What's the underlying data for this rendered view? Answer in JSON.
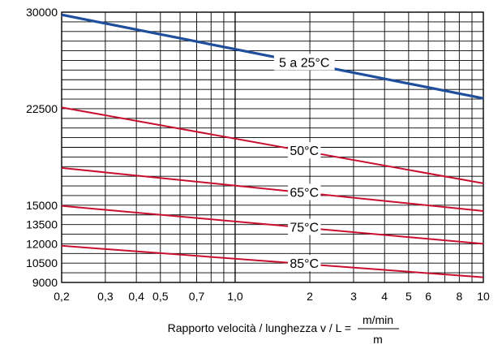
{
  "chart_data": {
    "type": "line",
    "x_scale": "log",
    "xlim": [
      0.2,
      10
    ],
    "ylim": [
      9000,
      30000
    ],
    "grid": true,
    "x_tick_labels": [
      {
        "v": 0.2,
        "t": "0,2"
      },
      {
        "v": 0.3,
        "t": "0,3"
      },
      {
        "v": 0.4,
        "t": "0,4"
      },
      {
        "v": 0.5,
        "t": "0,5"
      },
      {
        "v": 0.7,
        "t": "0,7"
      },
      {
        "v": 1.0,
        "t": "1,0"
      },
      {
        "v": 2,
        "t": "2"
      },
      {
        "v": 3,
        "t": "3"
      },
      {
        "v": 4,
        "t": "4"
      },
      {
        "v": 5,
        "t": "5"
      },
      {
        "v": 6,
        "t": "6"
      },
      {
        "v": 8,
        "t": "8"
      },
      {
        "v": 10,
        "t": "10"
      }
    ],
    "y_tick_labels": [
      {
        "v": 30000,
        "t": "30000"
      },
      {
        "v": 22500,
        "t": "22500"
      },
      {
        "v": 15000,
        "t": "15000"
      },
      {
        "v": 13500,
        "t": "13500"
      },
      {
        "v": 12000,
        "t": "12000"
      },
      {
        "v": 10500,
        "t": "10500"
      },
      {
        "v": 9000,
        "t": "9000"
      }
    ],
    "xlabel": {
      "prefix": "Rapporto velocità / lunghezza v / L = ",
      "numerator": "m/min",
      "denominator": "m"
    },
    "series": [
      {
        "name": "5 a 25°C",
        "color": "#1f4e9c",
        "x": [
          0.2,
          10
        ],
        "y": [
          29800,
          23300
        ],
        "label_at": 1.9
      },
      {
        "name": "50°C",
        "color": "#c8102e",
        "x": [
          0.2,
          10
        ],
        "y": [
          22600,
          16700
        ],
        "label_at": 1.9
      },
      {
        "name": "65°C",
        "color": "#c8102e",
        "x": [
          0.2,
          10
        ],
        "y": [
          17900,
          14550
        ],
        "label_at": 1.9
      },
      {
        "name": "75°C",
        "color": "#c8102e",
        "x": [
          0.2,
          10
        ],
        "y": [
          14950,
          12000
        ],
        "label_at": 1.9
      },
      {
        "name": "85°C",
        "color": "#c8102e",
        "x": [
          0.2,
          10
        ],
        "y": [
          11850,
          9400
        ],
        "label_at": 1.9
      }
    ]
  }
}
